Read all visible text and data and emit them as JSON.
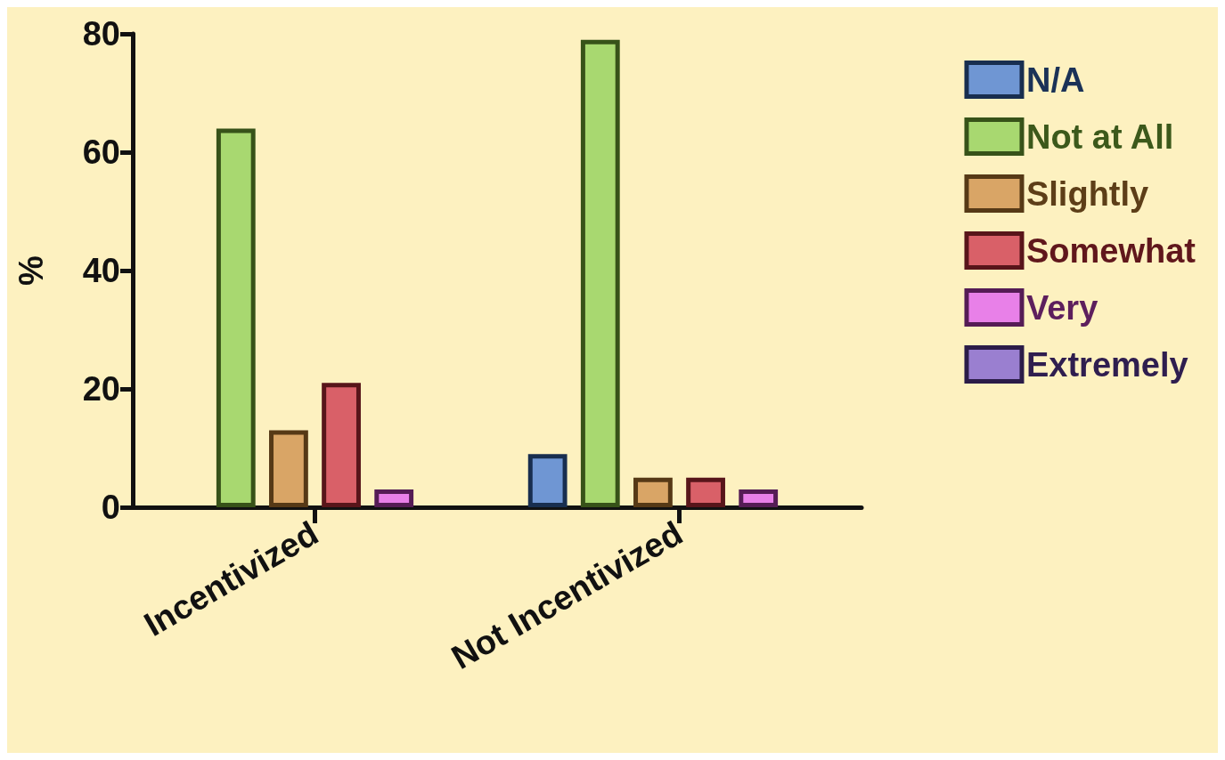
{
  "chart_data": {
    "type": "bar",
    "ylabel": "%",
    "categories": [
      "Incentivized",
      "Not Incentivized"
    ],
    "series": [
      {
        "name": "N/A",
        "color": "#6f96d3",
        "values": [
          null,
          9
        ]
      },
      {
        "name": "Not at All",
        "color": "#a8d870",
        "values": [
          64,
          79
        ]
      },
      {
        "name": "Slightly",
        "color": "#d9a566",
        "values": [
          13,
          5
        ]
      },
      {
        "name": "Somewhat",
        "color": "#d96068",
        "values": [
          21,
          5
        ]
      },
      {
        "name": "Very",
        "color": "#e880e8",
        "values": [
          3,
          3
        ]
      },
      {
        "name": "Extremely",
        "color": "#9a7fd0",
        "values": [
          null,
          null
        ]
      }
    ],
    "ylim": [
      0,
      80
    ],
    "yticks": [
      0,
      20,
      40,
      60,
      80
    ],
    "grid": false,
    "legend": "right"
  }
}
